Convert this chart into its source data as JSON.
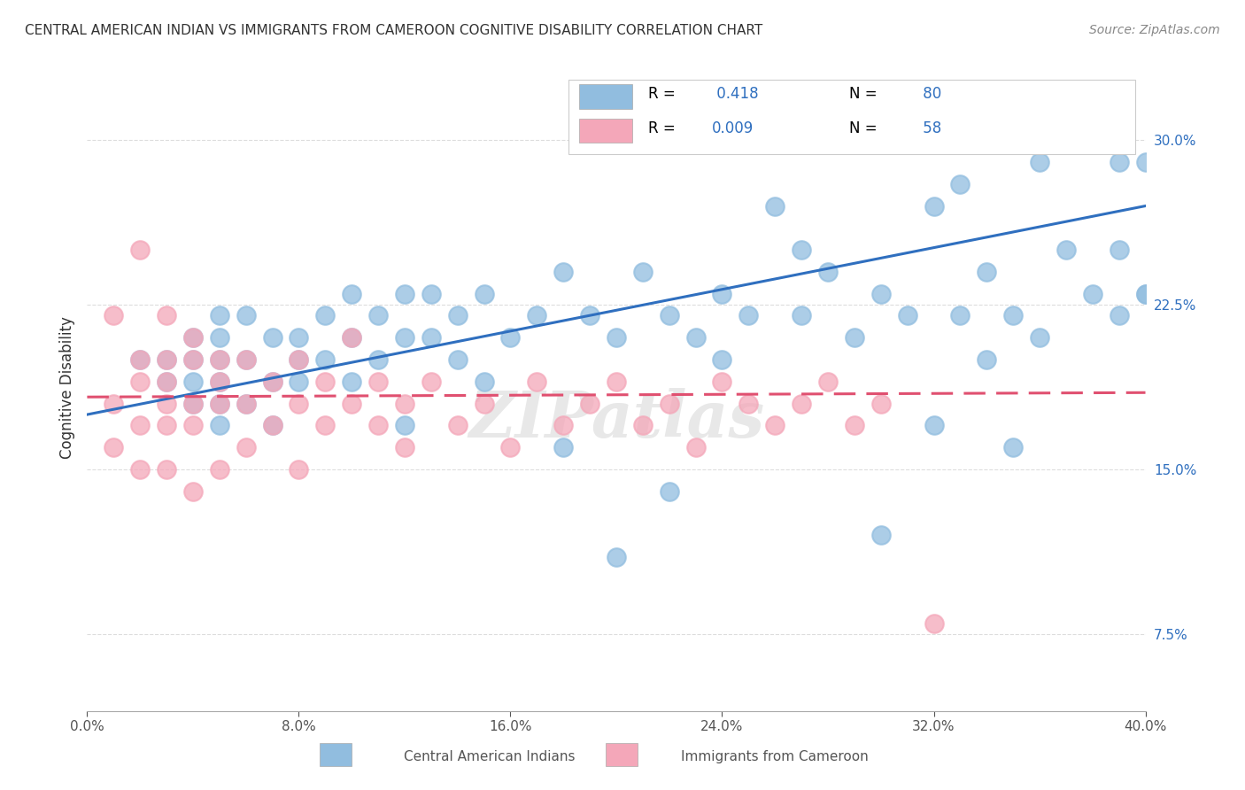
{
  "title": "CENTRAL AMERICAN INDIAN VS IMMIGRANTS FROM CAMEROON COGNITIVE DISABILITY CORRELATION CHART",
  "source": "Source: ZipAtlas.com",
  "xlabel": "",
  "ylabel": "Cognitive Disability",
  "xlim": [
    0.0,
    0.4
  ],
  "ylim": [
    0.04,
    0.335
  ],
  "xticks": [
    0.0,
    0.08,
    0.16,
    0.24,
    0.32,
    0.4
  ],
  "xtick_labels": [
    "0.0%",
    "8.0%",
    "16.0%",
    "24.0%",
    "32.0%",
    "40.0%"
  ],
  "yticks": [
    0.075,
    0.15,
    0.225,
    0.3
  ],
  "ytick_labels": [
    "7.5%",
    "15.0%",
    "22.5%",
    "30.0%"
  ],
  "legend_r1": "R =  0.418",
  "legend_n1": "N = 80",
  "legend_r2": "R = 0.009",
  "legend_n2": "N = 58",
  "blue_color": "#91BDDF",
  "pink_color": "#F4A7B9",
  "blue_line_color": "#2F6FBF",
  "pink_line_color": "#E05070",
  "watermark": "ZIPatlas",
  "watermark_color": "#CCCCCC",
  "grid_color": "#DDDDDD",
  "blue_scatter_x": [
    0.02,
    0.03,
    0.03,
    0.04,
    0.04,
    0.04,
    0.04,
    0.05,
    0.05,
    0.05,
    0.05,
    0.05,
    0.05,
    0.06,
    0.06,
    0.06,
    0.07,
    0.07,
    0.07,
    0.08,
    0.08,
    0.08,
    0.09,
    0.09,
    0.1,
    0.1,
    0.1,
    0.11,
    0.11,
    0.12,
    0.12,
    0.12,
    0.13,
    0.13,
    0.14,
    0.14,
    0.15,
    0.15,
    0.16,
    0.17,
    0.18,
    0.18,
    0.19,
    0.2,
    0.2,
    0.21,
    0.22,
    0.22,
    0.23,
    0.24,
    0.24,
    0.25,
    0.26,
    0.27,
    0.27,
    0.28,
    0.29,
    0.3,
    0.3,
    0.31,
    0.32,
    0.32,
    0.33,
    0.33,
    0.34,
    0.34,
    0.35,
    0.35,
    0.36,
    0.36,
    0.37,
    0.37,
    0.38,
    0.38,
    0.39,
    0.39,
    0.39,
    0.4,
    0.4,
    0.4
  ],
  "blue_scatter_y": [
    0.2,
    0.19,
    0.2,
    0.18,
    0.19,
    0.2,
    0.21,
    0.17,
    0.18,
    0.19,
    0.2,
    0.21,
    0.22,
    0.18,
    0.2,
    0.22,
    0.17,
    0.19,
    0.21,
    0.19,
    0.2,
    0.21,
    0.2,
    0.22,
    0.19,
    0.21,
    0.23,
    0.2,
    0.22,
    0.21,
    0.23,
    0.17,
    0.21,
    0.23,
    0.2,
    0.22,
    0.19,
    0.23,
    0.21,
    0.22,
    0.16,
    0.24,
    0.22,
    0.21,
    0.11,
    0.24,
    0.22,
    0.14,
    0.21,
    0.23,
    0.2,
    0.22,
    0.27,
    0.22,
    0.25,
    0.24,
    0.21,
    0.12,
    0.23,
    0.22,
    0.27,
    0.17,
    0.22,
    0.28,
    0.24,
    0.2,
    0.16,
    0.22,
    0.29,
    0.21,
    0.25,
    0.3,
    0.23,
    0.3,
    0.22,
    0.25,
    0.29,
    0.23,
    0.29,
    0.23
  ],
  "pink_scatter_x": [
    0.01,
    0.01,
    0.01,
    0.02,
    0.02,
    0.02,
    0.02,
    0.02,
    0.03,
    0.03,
    0.03,
    0.03,
    0.03,
    0.03,
    0.04,
    0.04,
    0.04,
    0.04,
    0.04,
    0.05,
    0.05,
    0.05,
    0.05,
    0.06,
    0.06,
    0.06,
    0.07,
    0.07,
    0.08,
    0.08,
    0.08,
    0.09,
    0.09,
    0.1,
    0.1,
    0.11,
    0.11,
    0.12,
    0.12,
    0.13,
    0.14,
    0.15,
    0.16,
    0.17,
    0.18,
    0.19,
    0.2,
    0.21,
    0.22,
    0.23,
    0.24,
    0.25,
    0.26,
    0.27,
    0.28,
    0.29,
    0.3,
    0.32
  ],
  "pink_scatter_y": [
    0.22,
    0.18,
    0.16,
    0.25,
    0.2,
    0.19,
    0.17,
    0.15,
    0.22,
    0.2,
    0.19,
    0.18,
    0.17,
    0.15,
    0.21,
    0.2,
    0.18,
    0.17,
    0.14,
    0.2,
    0.19,
    0.18,
    0.15,
    0.2,
    0.18,
    0.16,
    0.19,
    0.17,
    0.2,
    0.18,
    0.15,
    0.19,
    0.17,
    0.21,
    0.18,
    0.19,
    0.17,
    0.18,
    0.16,
    0.19,
    0.17,
    0.18,
    0.16,
    0.19,
    0.17,
    0.18,
    0.19,
    0.17,
    0.18,
    0.16,
    0.19,
    0.18,
    0.17,
    0.18,
    0.19,
    0.17,
    0.18,
    0.08
  ],
  "blue_trend_x": [
    0.0,
    0.4
  ],
  "blue_trend_y_start": 0.175,
  "blue_trend_y_end": 0.27,
  "pink_trend_x": [
    0.0,
    0.4
  ],
  "pink_trend_y_start": 0.183,
  "pink_trend_y_end": 0.185
}
